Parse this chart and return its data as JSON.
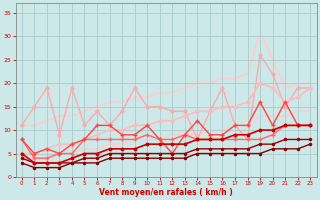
{
  "bg_color": "#cce8e8",
  "grid_color": "#aacccc",
  "xlabel": "Vent moyen/en rafales ( km/h )",
  "xlabel_color": "#cc0000",
  "tick_color": "#cc0000",
  "xlim": [
    -0.5,
    23.5
  ],
  "ylim": [
    0,
    37
  ],
  "yticks": [
    0,
    5,
    10,
    15,
    20,
    25,
    30,
    35
  ],
  "xticks": [
    0,
    1,
    2,
    3,
    4,
    5,
    6,
    7,
    8,
    9,
    10,
    11,
    12,
    13,
    14,
    15,
    16,
    17,
    18,
    19,
    20,
    21,
    22,
    23
  ],
  "lines": [
    {
      "x": [
        0,
        1,
        2,
        3,
        4,
        5,
        6,
        7,
        8,
        9,
        10,
        11,
        12,
        13,
        14,
        15,
        16,
        17,
        18,
        19,
        20,
        21,
        22,
        23
      ],
      "y": [
        11,
        11,
        12,
        13,
        13,
        14,
        15,
        16,
        16,
        17,
        17,
        18,
        18,
        19,
        20,
        20,
        21,
        21,
        22,
        31,
        25,
        19,
        20,
        20
      ],
      "color": "#ffcccc",
      "lw": 1.2,
      "marker": null,
      "ms": 0,
      "zorder": 1
    },
    {
      "x": [
        0,
        1,
        2,
        3,
        4,
        5,
        6,
        7,
        8,
        9,
        10,
        11,
        12,
        13,
        14,
        15,
        16,
        17,
        18,
        19,
        20,
        21,
        22,
        23
      ],
      "y": [
        11,
        15,
        19,
        9,
        19,
        11,
        14,
        11,
        14,
        19,
        15,
        15,
        14,
        14,
        8,
        14,
        19,
        11,
        8,
        26,
        22,
        15,
        19,
        19
      ],
      "color": "#ffaaaa",
      "lw": 1.0,
      "marker": "o",
      "ms": 2.0,
      "zorder": 2
    },
    {
      "x": [
        0,
        1,
        2,
        3,
        4,
        5,
        6,
        7,
        8,
        9,
        10,
        11,
        12,
        13,
        14,
        15,
        16,
        17,
        18,
        19,
        20,
        21,
        22,
        23
      ],
      "y": [
        5,
        5,
        6,
        7,
        7,
        8,
        9,
        10,
        10,
        11,
        11,
        12,
        12,
        13,
        14,
        14,
        15,
        15,
        16,
        20,
        19,
        16,
        17,
        19
      ],
      "color": "#ffbbbb",
      "lw": 1.2,
      "marker": "o",
      "ms": 2.0,
      "zorder": 2
    },
    {
      "x": [
        0,
        1,
        2,
        3,
        4,
        5,
        6,
        7,
        8,
        9,
        10,
        11,
        12,
        13,
        14,
        15,
        16,
        17,
        18,
        19,
        20,
        21,
        22,
        23
      ],
      "y": [
        4,
        4,
        4,
        5,
        5,
        6,
        6,
        7,
        7,
        8,
        8,
        8,
        9,
        9,
        9,
        10,
        10,
        11,
        11,
        13,
        13,
        13,
        14,
        14
      ],
      "color": "#ffcccc",
      "lw": 1.0,
      "marker": null,
      "ms": 0,
      "zorder": 1
    },
    {
      "x": [
        0,
        1,
        2,
        3,
        4,
        5,
        6,
        7,
        8,
        9,
        10,
        11,
        12,
        13,
        14,
        15,
        16,
        17,
        18,
        19,
        20,
        21,
        22,
        23
      ],
      "y": [
        8,
        5,
        6,
        5,
        7,
        8,
        11,
        11,
        9,
        9,
        11,
        8,
        5,
        9,
        12,
        9,
        9,
        11,
        11,
        16,
        11,
        16,
        11,
        11
      ],
      "color": "#ff4444",
      "lw": 1.0,
      "marker": "+",
      "ms": 3,
      "zorder": 4
    },
    {
      "x": [
        0,
        1,
        2,
        3,
        4,
        5,
        6,
        7,
        8,
        9,
        10,
        11,
        12,
        13,
        14,
        15,
        16,
        17,
        18,
        19,
        20,
        21,
        22,
        23
      ],
      "y": [
        8,
        4,
        4,
        5,
        5,
        8,
        8,
        8,
        8,
        8,
        9,
        8,
        8,
        9,
        8,
        8,
        8,
        8,
        8,
        8,
        9,
        11,
        11,
        11
      ],
      "color": "#ff6666",
      "lw": 1.0,
      "marker": "+",
      "ms": 2.5,
      "zorder": 3
    },
    {
      "x": [
        0,
        1,
        2,
        3,
        4,
        5,
        6,
        7,
        8,
        9,
        10,
        11,
        12,
        13,
        14,
        15,
        16,
        17,
        18,
        19,
        20,
        21,
        22,
        23
      ],
      "y": [
        5,
        3,
        3,
        3,
        4,
        5,
        5,
        6,
        6,
        6,
        7,
        7,
        7,
        7,
        8,
        8,
        8,
        9,
        9,
        10,
        10,
        11,
        11,
        11
      ],
      "color": "#cc0000",
      "lw": 1.2,
      "marker": "o",
      "ms": 1.8,
      "zorder": 5
    },
    {
      "x": [
        0,
        1,
        2,
        3,
        4,
        5,
        6,
        7,
        8,
        9,
        10,
        11,
        12,
        13,
        14,
        15,
        16,
        17,
        18,
        19,
        20,
        21,
        22,
        23
      ],
      "y": [
        4,
        3,
        3,
        3,
        3,
        4,
        4,
        5,
        5,
        5,
        5,
        5,
        5,
        5,
        6,
        6,
        6,
        6,
        6,
        7,
        7,
        8,
        8,
        8
      ],
      "color": "#990000",
      "lw": 1.0,
      "marker": "o",
      "ms": 1.5,
      "zorder": 4
    },
    {
      "x": [
        0,
        1,
        2,
        3,
        4,
        5,
        6,
        7,
        8,
        9,
        10,
        11,
        12,
        13,
        14,
        15,
        16,
        17,
        18,
        19,
        20,
        21,
        22,
        23
      ],
      "y": [
        3,
        2,
        2,
        2,
        3,
        3,
        3,
        4,
        4,
        4,
        4,
        4,
        4,
        4,
        5,
        5,
        5,
        5,
        5,
        5,
        6,
        6,
        6,
        7
      ],
      "color": "#880000",
      "lw": 1.0,
      "marker": "o",
      "ms": 1.5,
      "zorder": 4
    }
  ]
}
